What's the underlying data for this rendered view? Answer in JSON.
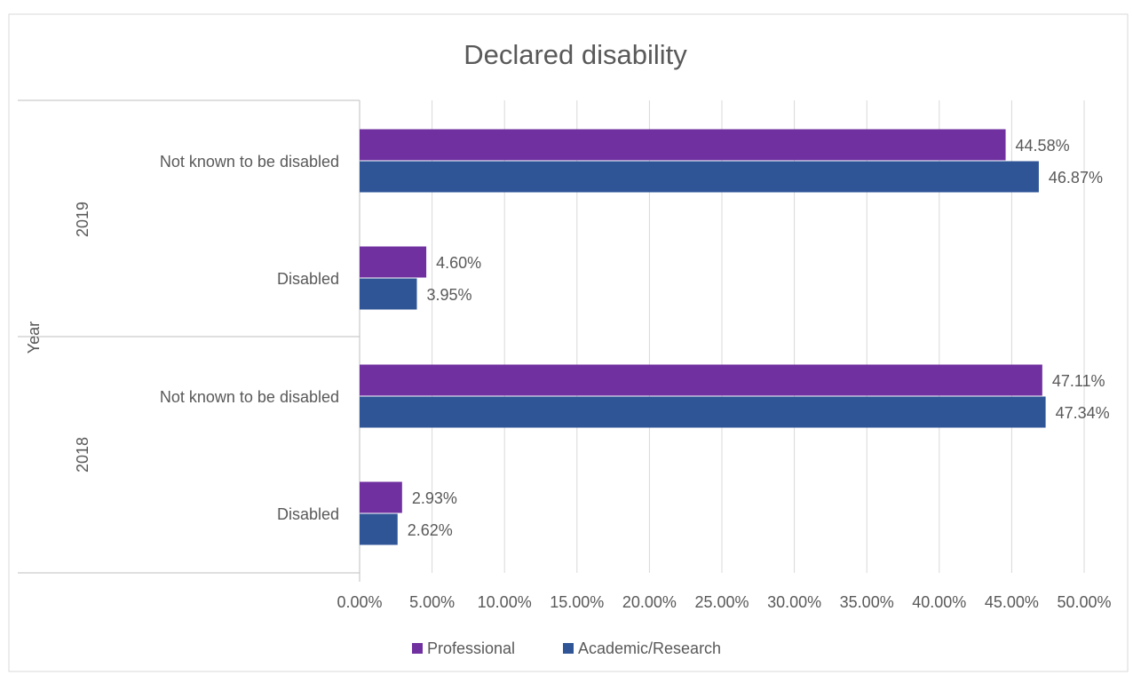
{
  "chart_data": {
    "type": "bar",
    "orientation": "horizontal",
    "title": "Declared disability",
    "ylabel": "Year",
    "xlabel": "",
    "xlim": [
      0,
      0.5
    ],
    "x_ticks": [
      {
        "value": 0.0,
        "label": "0.00%"
      },
      {
        "value": 0.05,
        "label": "5.00%"
      },
      {
        "value": 0.1,
        "label": "10.00%"
      },
      {
        "value": 0.15,
        "label": "15.00%"
      },
      {
        "value": 0.2,
        "label": "20.00%"
      },
      {
        "value": 0.25,
        "label": "25.00%"
      },
      {
        "value": 0.3,
        "label": "30.00%"
      },
      {
        "value": 0.35,
        "label": "35.00%"
      },
      {
        "value": 0.4,
        "label": "40.00%"
      },
      {
        "value": 0.45,
        "label": "45.00%"
      },
      {
        "value": 0.5,
        "label": "50.00%"
      }
    ],
    "grid": true,
    "legend": "bottom",
    "groups": [
      {
        "label": "2019",
        "categories": [
          "Not known to be disabled",
          "Disabled"
        ]
      },
      {
        "label": "2018",
        "categories": [
          "Not known to be disabled",
          "Disabled"
        ]
      }
    ],
    "series": [
      {
        "name": "Professional",
        "color": "#7030A0",
        "values": [
          0.4458,
          0.046,
          0.4711,
          0.0293
        ],
        "labels": [
          "44.58%",
          "4.60%",
          "47.11%",
          "2.93%"
        ]
      },
      {
        "name": "Academic/Research",
        "color": "#2F5597",
        "values": [
          0.4687,
          0.0395,
          0.4734,
          0.0262
        ],
        "labels": [
          "46.87%",
          "3.95%",
          "47.34%",
          "2.62%"
        ]
      }
    ]
  }
}
